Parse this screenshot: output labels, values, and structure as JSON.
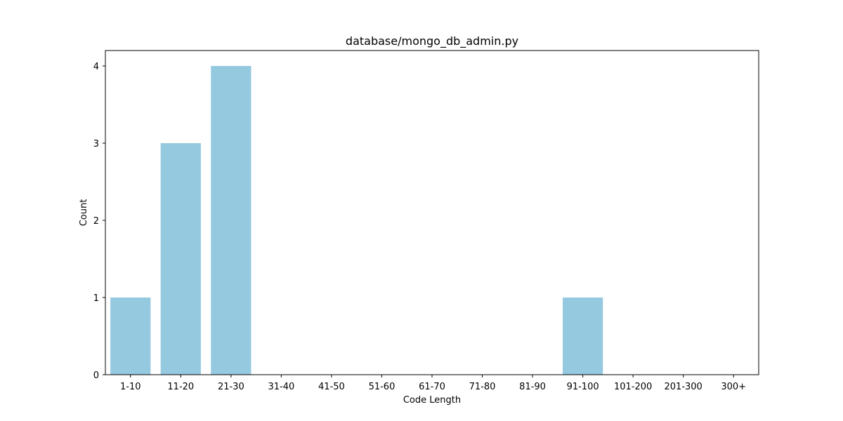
{
  "chart_data": {
    "type": "bar",
    "title": "database/mongo_db_admin.py",
    "xlabel": "Code Length",
    "ylabel": "Count",
    "categories": [
      "1-10",
      "11-20",
      "21-30",
      "31-40",
      "41-50",
      "51-60",
      "61-70",
      "71-80",
      "81-90",
      "91-100",
      "101-200",
      "201-300",
      "300+"
    ],
    "values": [
      1,
      3,
      4,
      0,
      0,
      0,
      0,
      0,
      0,
      1,
      0,
      0,
      0
    ],
    "yticks": [
      0,
      1,
      2,
      3,
      4
    ],
    "ylim": [
      0,
      4.2
    ],
    "grid": false,
    "colors": {
      "bar": "#95c9df",
      "axis": "#000000",
      "text": "#000000",
      "background": "#ffffff"
    }
  }
}
